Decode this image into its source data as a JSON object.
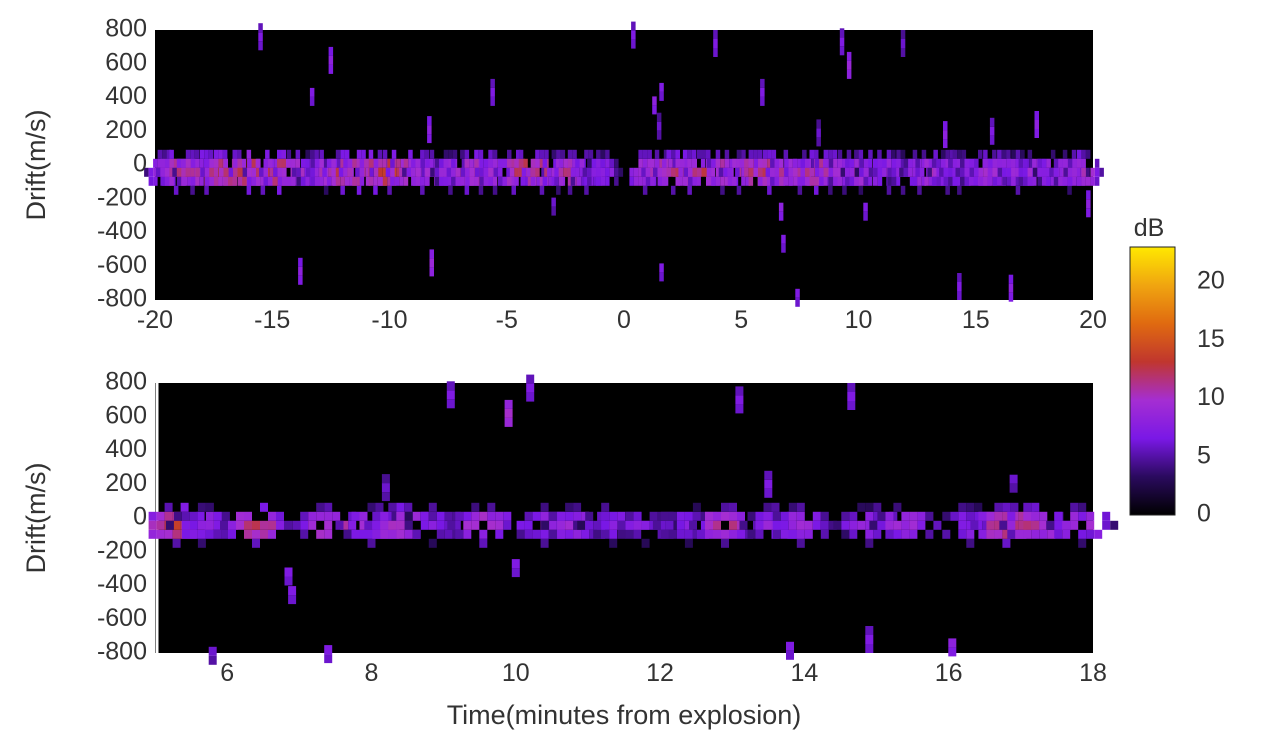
{
  "colorbar": {
    "label": "dB",
    "ticks": [
      0,
      5,
      10,
      15,
      20
    ],
    "range": [
      0,
      23
    ],
    "colors": [
      "#000000",
      "#2a0a5e",
      "#7a18e6",
      "#a52ed2",
      "#c0362e",
      "#e06a10",
      "#f0a510",
      "#ffe800"
    ]
  },
  "chart_data": [
    {
      "type": "heatmap",
      "name": "top",
      "ylabel": "Drift(m/s)",
      "xlabel": "",
      "xlim": [
        -20,
        20
      ],
      "ylim": [
        -800,
        800
      ],
      "xticks": [
        "-20",
        "-15",
        "-10",
        "-5",
        "0",
        "5",
        "10",
        "15",
        "20"
      ],
      "yticks": [
        "800",
        "600",
        "400",
        "200",
        "0",
        "-200",
        "-400",
        "-600",
        "-800"
      ],
      "band_center_drift": -40,
      "band_halfwidth_drift": 110,
      "burst_times": [
        -19.6,
        -19.1,
        -18.4,
        -17.8,
        -17.2,
        -16.6,
        -16.0,
        -15.4,
        -14.7,
        -14.1,
        -13.3,
        -12.7,
        -12.0,
        -11.3,
        -10.6,
        -10.0,
        -9.3,
        -8.6,
        -8.0,
        -7.4,
        -6.7,
        -6.1,
        -5.5,
        -4.7,
        -4.2,
        -3.5,
        -2.8,
        -2.3,
        -1.6,
        -0.9,
        0.9,
        1.6,
        2.1,
        2.8,
        3.4,
        4.2,
        4.9,
        5.6,
        6.2,
        6.9,
        7.5,
        8.2,
        8.8,
        9.4,
        10.1,
        10.7,
        11.3,
        11.9,
        12.6,
        13.1,
        13.8,
        14.3,
        15.0,
        15.6,
        16.2,
        16.8,
        17.5,
        18.3,
        19.0,
        19.6
      ],
      "burst_peak_db": [
        9,
        12,
        11,
        13,
        12,
        13,
        14,
        12,
        13,
        11,
        9,
        10,
        12,
        12,
        13,
        14,
        12,
        10,
        11,
        9,
        11,
        12,
        10,
        11,
        13,
        12,
        10,
        11,
        9,
        8,
        10,
        11,
        12,
        11,
        12,
        11,
        10,
        13,
        12,
        11,
        10,
        12,
        11,
        10,
        10,
        9,
        9,
        8,
        9,
        10,
        9,
        8,
        9,
        10,
        10,
        9,
        9,
        9,
        10,
        11
      ],
      "outliers": [
        {
          "t": -15.5,
          "drift": 760,
          "db": 7
        },
        {
          "t": -12.5,
          "drift": 620,
          "db": 8
        },
        {
          "t": -13.3,
          "drift": 430,
          "db": 7
        },
        {
          "t": -8.3,
          "drift": 210,
          "db": 8
        },
        {
          "t": -8.2,
          "drift": -580,
          "db": 9
        },
        {
          "t": -13.8,
          "drift": -630,
          "db": 8
        },
        {
          "t": -5.6,
          "drift": 430,
          "db": 7
        },
        {
          "t": -3.0,
          "drift": -220,
          "db": 6
        },
        {
          "t": 0.4,
          "drift": 770,
          "db": 7
        },
        {
          "t": 1.6,
          "drift": 460,
          "db": 7
        },
        {
          "t": 1.3,
          "drift": 380,
          "db": 8
        },
        {
          "t": 1.5,
          "drift": 230,
          "db": 6
        },
        {
          "t": 1.6,
          "drift": -610,
          "db": 7
        },
        {
          "t": 3.9,
          "drift": 720,
          "db": 7
        },
        {
          "t": 5.9,
          "drift": 430,
          "db": 7
        },
        {
          "t": 6.7,
          "drift": -250,
          "db": 8
        },
        {
          "t": 6.8,
          "drift": -440,
          "db": 7
        },
        {
          "t": 7.4,
          "drift": -760,
          "db": 7
        },
        {
          "t": 9.3,
          "drift": 730,
          "db": 7
        },
        {
          "t": 9.6,
          "drift": 590,
          "db": 9
        },
        {
          "t": 8.3,
          "drift": 190,
          "db": 6
        },
        {
          "t": 10.3,
          "drift": -250,
          "db": 7
        },
        {
          "t": 11.9,
          "drift": 720,
          "db": 6
        },
        {
          "t": 13.7,
          "drift": 180,
          "db": 8
        },
        {
          "t": 15.7,
          "drift": 200,
          "db": 7
        },
        {
          "t": 17.6,
          "drift": 240,
          "db": 8
        },
        {
          "t": 14.3,
          "drift": -720,
          "db": 7
        },
        {
          "t": 16.5,
          "drift": -730,
          "db": 8
        },
        {
          "t": 19.8,
          "drift": -230,
          "db": 8
        }
      ]
    },
    {
      "type": "heatmap",
      "name": "bottom",
      "ylabel": "Drift(m/s)",
      "xlabel": "Time(minutes from explosion)",
      "xlim": [
        5,
        18
      ],
      "ylim": [
        -800,
        800
      ],
      "xticks": [
        "6",
        "8",
        "10",
        "12",
        "14",
        "16",
        "18"
      ],
      "yticks": [
        "800",
        "600",
        "400",
        "200",
        "0",
        "-200",
        "-400",
        "-600",
        "-800"
      ],
      "band_center_drift": -40,
      "band_halfwidth_drift": 110,
      "burst_times": [
        5.3,
        5.65,
        6.4,
        7.4,
        8.0,
        8.4,
        8.85,
        9.55,
        10.4,
        10.85,
        11.35,
        11.8,
        12.4,
        12.9,
        13.6,
        13.95,
        14.9,
        15.4,
        16.3,
        16.8,
        17.2,
        17.85
      ],
      "burst_peak_db": [
        13,
        8,
        12,
        11,
        9,
        11,
        7,
        10,
        8,
        9,
        7,
        7,
        7,
        11,
        8,
        9,
        8,
        9,
        8,
        13,
        11,
        9
      ],
      "outliers": [
        {
          "t": 9.1,
          "drift": 730,
          "db": 7
        },
        {
          "t": 9.9,
          "drift": 620,
          "db": 10
        },
        {
          "t": 10.2,
          "drift": 770,
          "db": 7
        },
        {
          "t": 13.1,
          "drift": 700,
          "db": 7
        },
        {
          "t": 14.65,
          "drift": 720,
          "db": 7
        },
        {
          "t": 8.2,
          "drift": 180,
          "db": 6
        },
        {
          "t": 13.5,
          "drift": 200,
          "db": 7
        },
        {
          "t": 16.9,
          "drift": 230,
          "db": 6
        },
        {
          "t": 6.85,
          "drift": -320,
          "db": 7
        },
        {
          "t": 6.9,
          "drift": -430,
          "db": 7
        },
        {
          "t": 10.0,
          "drift": -270,
          "db": 7
        },
        {
          "t": 13.8,
          "drift": -760,
          "db": 7
        },
        {
          "t": 14.9,
          "drift": -720,
          "db": 7
        },
        {
          "t": 16.05,
          "drift": -740,
          "db": 8
        },
        {
          "t": 7.4,
          "drift": -780,
          "db": 7
        },
        {
          "t": 5.8,
          "drift": -790,
          "db": 6
        }
      ]
    }
  ]
}
